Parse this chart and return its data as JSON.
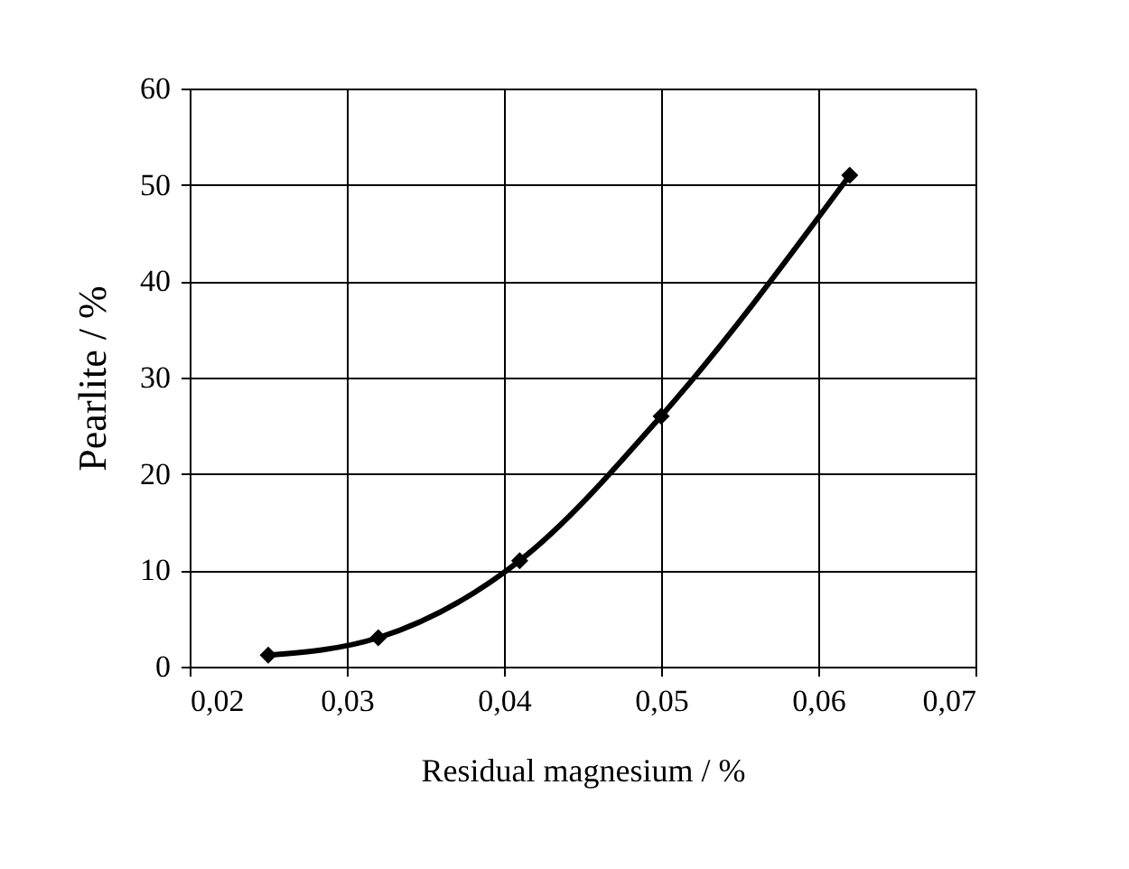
{
  "chart_data": {
    "type": "line",
    "xlabel": "Residual magnesium / %",
    "ylabel": "Pearlite / %",
    "x": [
      0.025,
      0.032,
      0.041,
      0.05,
      0.062
    ],
    "series": [
      {
        "color": "#000000",
        "values": [
          1.2,
          3,
          11,
          26,
          51
        ]
      }
    ],
    "xlim": [
      0.02,
      0.07
    ],
    "xticks": [
      {
        "value": 0.02,
        "label": "0,02"
      },
      {
        "value": 0.03,
        "label": "0,03"
      },
      {
        "value": 0.04,
        "label": "0,04"
      },
      {
        "value": 0.05,
        "label": "0,05"
      },
      {
        "value": 0.06,
        "label": "0,06"
      },
      {
        "value": 0.07,
        "label": "0,07"
      }
    ],
    "ylim": [
      0,
      60
    ],
    "yticks": [
      0,
      10,
      20,
      30,
      40,
      50,
      60
    ],
    "grid": true,
    "marker": "diamond",
    "line_style": "solid"
  }
}
